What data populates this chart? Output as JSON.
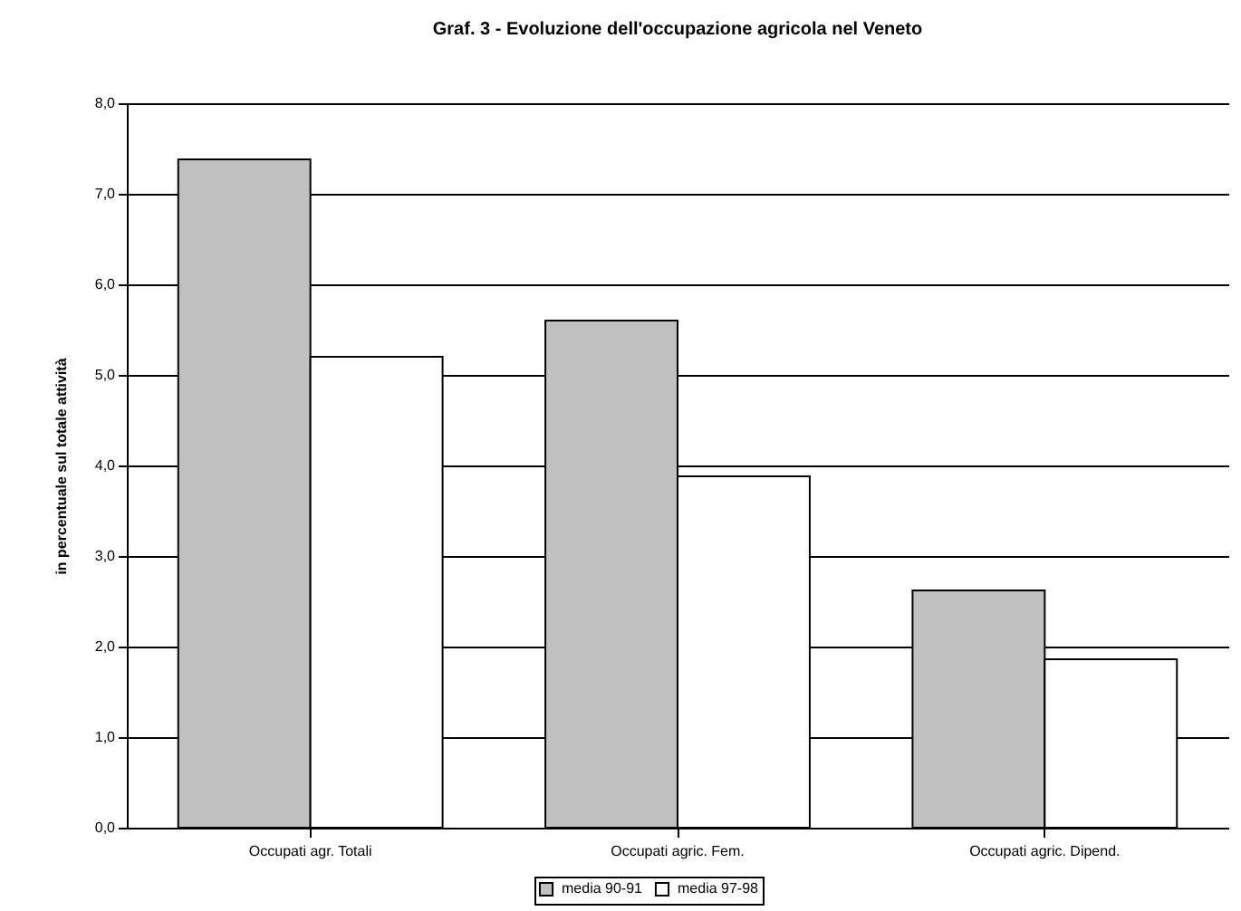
{
  "chart_data": {
    "type": "bar",
    "title": "Graf. 3 - Evoluzione dell'occupazione agricola nel Veneto",
    "ylabel": "in percentuale sul totale attività",
    "categories": [
      "Occupati agr. Totali",
      "Occupati agric. Fem.",
      "Occupati agric. Dipend."
    ],
    "series": [
      {
        "name": "media 90-91",
        "color": "#c0c0c0",
        "values": [
          7.38,
          5.6,
          2.62
        ]
      },
      {
        "name": "media 97-98",
        "color": "#ffffff",
        "values": [
          5.2,
          3.88,
          1.86
        ]
      }
    ],
    "ylim": [
      0,
      8
    ],
    "yticks": [
      {
        "value": 0,
        "label": "0,0"
      },
      {
        "value": 1,
        "label": "1,0"
      },
      {
        "value": 2,
        "label": "2,0"
      },
      {
        "value": 3,
        "label": "3,0"
      },
      {
        "value": 4,
        "label": "4,0"
      },
      {
        "value": 5,
        "label": "5,0"
      },
      {
        "value": 6,
        "label": "6,0"
      },
      {
        "value": 7,
        "label": "7,0"
      },
      {
        "value": 8,
        "label": "8,0"
      }
    ],
    "grid": "y",
    "legend": "bottom"
  }
}
